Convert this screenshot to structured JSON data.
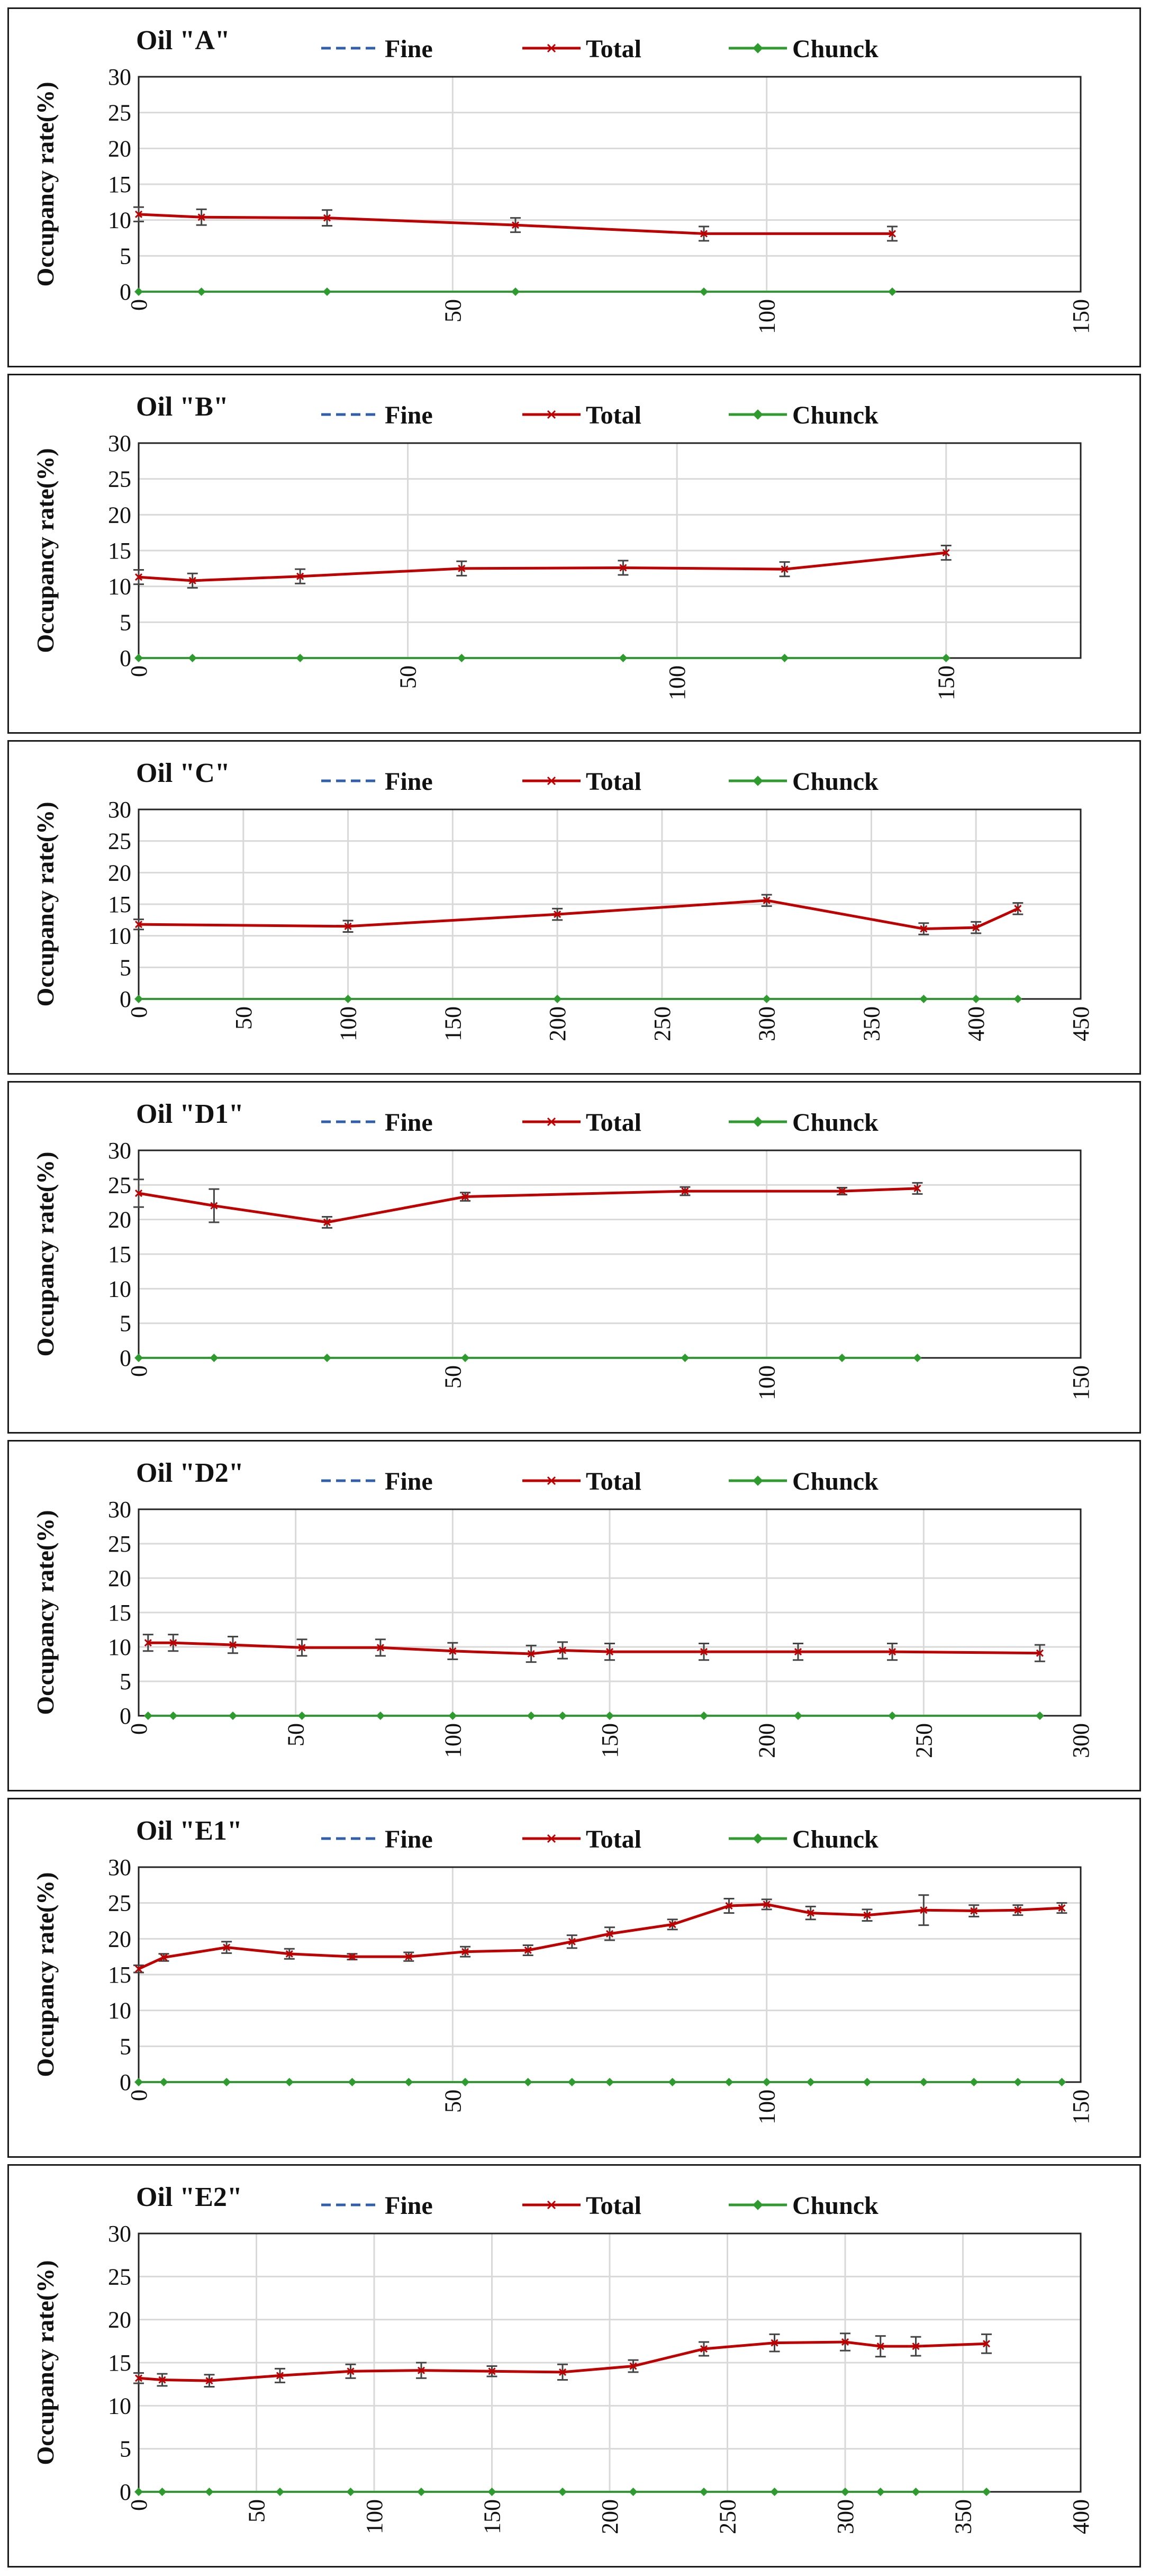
{
  "series_styles": {
    "fine": {
      "color": "#2f5fad",
      "dash": "dashed"
    },
    "total": {
      "color": "#c00000",
      "dash": "solid",
      "marker": "x"
    },
    "chunck": {
      "color": "#2e9b2e",
      "dash": "solid",
      "marker": "diamond"
    },
    "errorbar": "#444444",
    "grid": "#d9d9d9"
  },
  "y_axis_label": "Occupancy rate(%)",
  "chart_data": [
    {
      "type": "line",
      "title": "Oil \"A\"",
      "legend": [
        "Fine",
        "Total",
        "Chunck"
      ],
      "legend_position": "top",
      "grid": true,
      "xlim": [
        0,
        150
      ],
      "xticks": [
        0,
        50,
        100,
        150
      ],
      "ylim": [
        0,
        30
      ],
      "yticks": [
        0,
        5,
        10,
        15,
        20,
        25,
        30
      ],
      "x": [
        0,
        10,
        30,
        60,
        90,
        120
      ],
      "series": [
        {
          "name": "Fine",
          "values": [
            10.8,
            10.4,
            10.3,
            9.3,
            8.1,
            8.1
          ]
        },
        {
          "name": "Total",
          "values": [
            10.8,
            10.4,
            10.3,
            9.3,
            8.1,
            8.1
          ],
          "error": [
            1.0,
            1.1,
            1.1,
            1.0,
            1.0,
            1.0
          ]
        },
        {
          "name": "Chunck",
          "values": [
            0,
            0,
            0,
            0,
            0,
            0
          ]
        }
      ]
    },
    {
      "type": "line",
      "title": "Oil \"B\"",
      "legend": [
        "Fine",
        "Total",
        "Chunck"
      ],
      "legend_position": "top",
      "grid": true,
      "xlim": [
        0,
        175
      ],
      "xticks": [
        0,
        50,
        100,
        150
      ],
      "ylim": [
        0,
        30
      ],
      "yticks": [
        0,
        5,
        10,
        15,
        20,
        25,
        30
      ],
      "x": [
        0,
        10,
        30,
        60,
        90,
        120,
        150
      ],
      "series": [
        {
          "name": "Fine",
          "values": [
            11.3,
            10.8,
            11.4,
            12.5,
            12.6,
            12.4,
            14.7
          ]
        },
        {
          "name": "Total",
          "values": [
            11.3,
            10.8,
            11.4,
            12.5,
            12.6,
            12.4,
            14.7
          ],
          "error": [
            1.0,
            1.0,
            1.0,
            1.0,
            1.0,
            1.0,
            1.0
          ]
        },
        {
          "name": "Chunck",
          "values": [
            0,
            0,
            0,
            0,
            0,
            0,
            0
          ]
        }
      ]
    },
    {
      "type": "line",
      "title": "Oil \"C\"",
      "legend": [
        "Fine",
        "Total",
        "Chunck"
      ],
      "legend_position": "top",
      "grid": true,
      "xlim": [
        0,
        450
      ],
      "xticks": [
        0,
        50,
        100,
        150,
        200,
        250,
        300,
        350,
        400,
        450
      ],
      "ylim": [
        0,
        30
      ],
      "yticks": [
        0,
        5,
        10,
        15,
        20,
        25,
        30
      ],
      "x": [
        0,
        100,
        200,
        300,
        375,
        400,
        420
      ],
      "series": [
        {
          "name": "Fine",
          "values": [
            11.8,
            11.5,
            13.4,
            15.6,
            11.1,
            11.3,
            14.3
          ]
        },
        {
          "name": "Total",
          "values": [
            11.8,
            11.5,
            13.4,
            15.6,
            11.1,
            11.3,
            14.3
          ],
          "error": [
            0.8,
            0.9,
            0.9,
            0.9,
            0.9,
            0.9,
            0.9
          ]
        },
        {
          "name": "Chunck",
          "values": [
            0,
            0,
            0,
            0,
            0,
            0,
            0
          ]
        }
      ]
    },
    {
      "type": "line",
      "title": "Oil \"D1\"",
      "legend": [
        "Fine",
        "Total",
        "Chunck"
      ],
      "legend_position": "top",
      "grid": true,
      "xlim": [
        0,
        150
      ],
      "xticks": [
        0,
        50,
        100,
        150
      ],
      "ylim": [
        0,
        30
      ],
      "yticks": [
        0,
        5,
        10,
        15,
        20,
        25,
        30
      ],
      "x": [
        0,
        12,
        30,
        52,
        87,
        112,
        124
      ],
      "series": [
        {
          "name": "Fine",
          "values": [
            23.8,
            22.0,
            19.6,
            23.3,
            24.1,
            24.1,
            24.5
          ]
        },
        {
          "name": "Total",
          "values": [
            23.8,
            22.0,
            19.6,
            23.3,
            24.1,
            24.1,
            24.5
          ],
          "error": [
            2.0,
            2.4,
            0.8,
            0.6,
            0.6,
            0.5,
            0.8
          ]
        },
        {
          "name": "Chunck",
          "values": [
            0,
            0,
            0,
            0,
            0,
            0,
            0
          ]
        }
      ]
    },
    {
      "type": "line",
      "title": "Oil \"D2\"",
      "legend": [
        "Fine",
        "Total",
        "Chunck"
      ],
      "legend_position": "top",
      "grid": true,
      "xlim": [
        0,
        300
      ],
      "xticks": [
        0,
        50,
        100,
        150,
        200,
        250,
        300
      ],
      "ylim": [
        0,
        30
      ],
      "yticks": [
        0,
        5,
        10,
        15,
        20,
        25,
        30
      ],
      "x": [
        3,
        11,
        30,
        52,
        77,
        100,
        125,
        135,
        150,
        180,
        210,
        240,
        287
      ],
      "series": [
        {
          "name": "Fine",
          "values": [
            10.6,
            10.6,
            10.3,
            9.9,
            9.9,
            9.4,
            9.0,
            9.5,
            9.3,
            9.3,
            9.3,
            9.3,
            9.1
          ]
        },
        {
          "name": "Total",
          "values": [
            10.6,
            10.6,
            10.3,
            9.9,
            9.9,
            9.4,
            9.0,
            9.5,
            9.3,
            9.3,
            9.3,
            9.3,
            9.1
          ],
          "error": [
            1.2,
            1.2,
            1.2,
            1.2,
            1.2,
            1.2,
            1.2,
            1.2,
            1.2,
            1.2,
            1.2,
            1.2,
            1.2
          ]
        },
        {
          "name": "Chunck",
          "values": [
            0,
            0,
            0,
            0,
            0,
            0,
            0,
            0,
            0,
            0,
            0,
            0,
            0
          ]
        }
      ]
    },
    {
      "type": "line",
      "title": "Oil \"E1\"",
      "legend": [
        "Fine",
        "Total",
        "Chunck"
      ],
      "legend_position": "top",
      "grid": true,
      "xlim": [
        0,
        150
      ],
      "xticks": [
        0,
        50,
        100,
        150
      ],
      "ylim": [
        0,
        30
      ],
      "yticks": [
        0,
        5,
        10,
        15,
        20,
        25,
        30
      ],
      "x": [
        0,
        4,
        14,
        24,
        34,
        43,
        52,
        62,
        69,
        75,
        85,
        94,
        100,
        107,
        116,
        125,
        133,
        140,
        147
      ],
      "series": [
        {
          "name": "Fine",
          "values": [
            15.8,
            17.4,
            18.8,
            17.9,
            17.5,
            17.5,
            18.2,
            18.4,
            19.6,
            20.7,
            22.0,
            24.6,
            24.8,
            23.6,
            23.3,
            24.0,
            23.9,
            24.0,
            24.3
          ]
        },
        {
          "name": "Total",
          "values": [
            15.8,
            17.4,
            18.8,
            17.9,
            17.5,
            17.5,
            18.2,
            18.4,
            19.6,
            20.7,
            22.0,
            24.6,
            24.8,
            23.6,
            23.3,
            24.0,
            23.9,
            24.0,
            24.3
          ],
          "error": [
            0.5,
            0.5,
            0.8,
            0.7,
            0.4,
            0.6,
            0.7,
            0.7,
            0.9,
            0.9,
            0.7,
            1.0,
            0.7,
            0.9,
            0.8,
            2.1,
            0.8,
            0.7,
            0.7
          ]
        },
        {
          "name": "Chunck",
          "values": [
            0,
            0,
            0,
            0,
            0,
            0,
            0,
            0,
            0,
            0,
            0,
            0,
            0,
            0,
            0,
            0,
            0,
            0,
            0
          ]
        }
      ]
    },
    {
      "type": "line",
      "title": "Oil \"E2\"",
      "legend": [
        "Fine",
        "Total",
        "Chunck"
      ],
      "legend_position": "top",
      "grid": true,
      "xlim": [
        0,
        400
      ],
      "xticks": [
        0,
        50,
        100,
        150,
        200,
        250,
        300,
        350,
        400
      ],
      "ylim": [
        0,
        30
      ],
      "yticks": [
        0,
        5,
        10,
        15,
        20,
        25,
        30
      ],
      "x": [
        0,
        10,
        30,
        60,
        90,
        120,
        150,
        180,
        210,
        240,
        270,
        300,
        315,
        330,
        360
      ],
      "series": [
        {
          "name": "Fine",
          "values": [
            13.2,
            13.0,
            12.9,
            13.5,
            14.0,
            14.1,
            14.0,
            13.9,
            14.6,
            16.6,
            17.3,
            17.4,
            16.9,
            16.9,
            17.2
          ]
        },
        {
          "name": "Total",
          "values": [
            13.2,
            13.0,
            12.9,
            13.5,
            14.0,
            14.1,
            14.0,
            13.9,
            14.6,
            16.6,
            17.3,
            17.4,
            16.9,
            16.9,
            17.2
          ],
          "error": [
            0.6,
            0.7,
            0.7,
            0.8,
            0.8,
            0.9,
            0.6,
            0.9,
            0.7,
            0.8,
            1.0,
            1.0,
            1.2,
            1.1,
            1.1
          ]
        },
        {
          "name": "Chunck",
          "values": [
            0,
            0,
            0,
            0,
            0,
            0,
            0,
            0,
            0,
            0,
            0,
            0,
            0,
            0,
            0
          ]
        }
      ]
    }
  ]
}
